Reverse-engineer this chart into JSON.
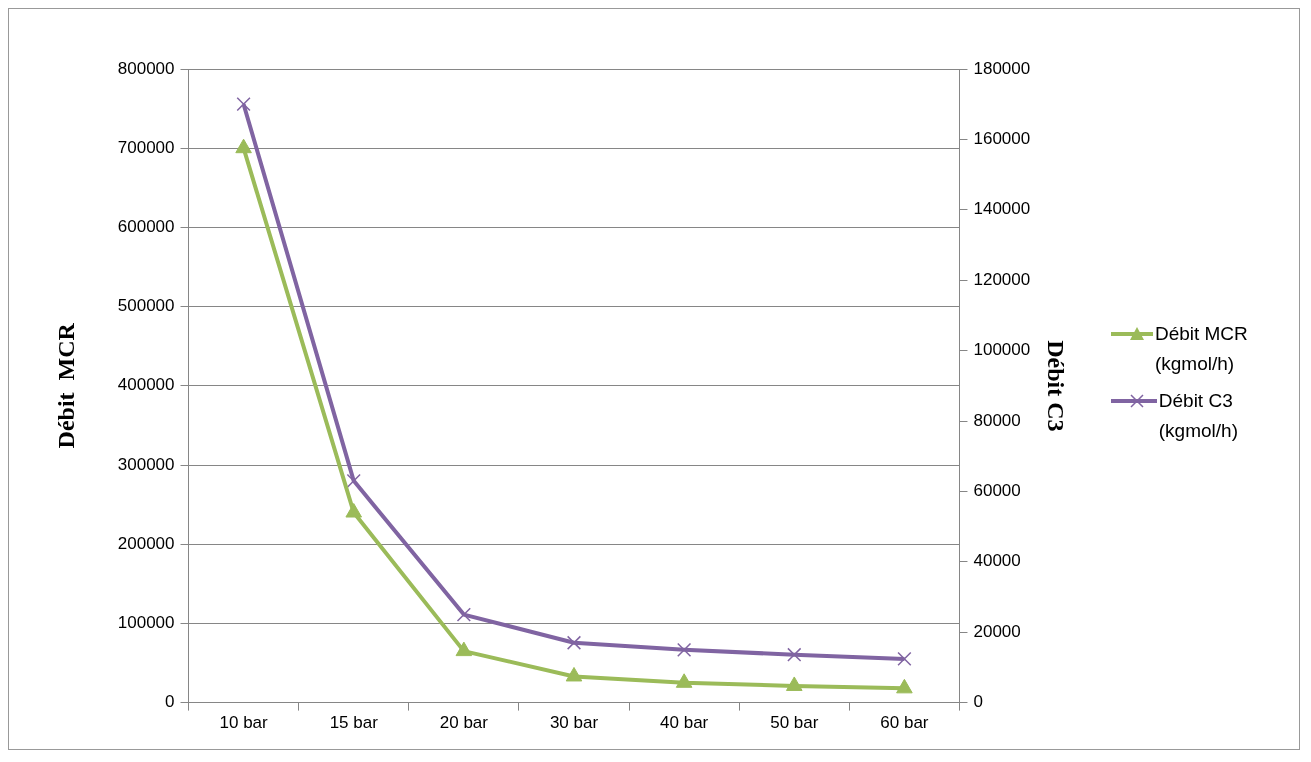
{
  "chart_data": {
    "type": "line",
    "ylabel": "Débit  MCR",
    "y2label": "Débit C3",
    "categories": [
      "10 bar",
      "15 bar",
      "20 bar",
      "30 bar",
      "40 bar",
      "50 bar",
      "60 bar"
    ],
    "series": [
      {
        "name": "Débit MCR (kgmol/h)",
        "color": "#9bbb59",
        "marker": "triangle",
        "values": [
          700000,
          240000,
          65000,
          33000,
          25000,
          21000,
          18000
        ]
      },
      {
        "name": "Débit C3 (kgmol/h)",
        "color": "#8064a2",
        "marker": "cross",
        "axis": "y2",
        "values": [
          170000,
          63000,
          25000,
          17000,
          15000,
          13600,
          12400
        ]
      }
    ],
    "ylim": [
      0,
      800000
    ],
    "yticks": [
      0,
      100000,
      200000,
      300000,
      400000,
      500000,
      600000,
      700000,
      800000
    ],
    "y2lim": [
      0,
      180000
    ],
    "y2ticks": [
      0,
      20000,
      40000,
      60000,
      80000,
      100000,
      120000,
      140000,
      160000,
      180000
    ],
    "grid": "y",
    "legend": "right",
    "line_style": "solid"
  }
}
